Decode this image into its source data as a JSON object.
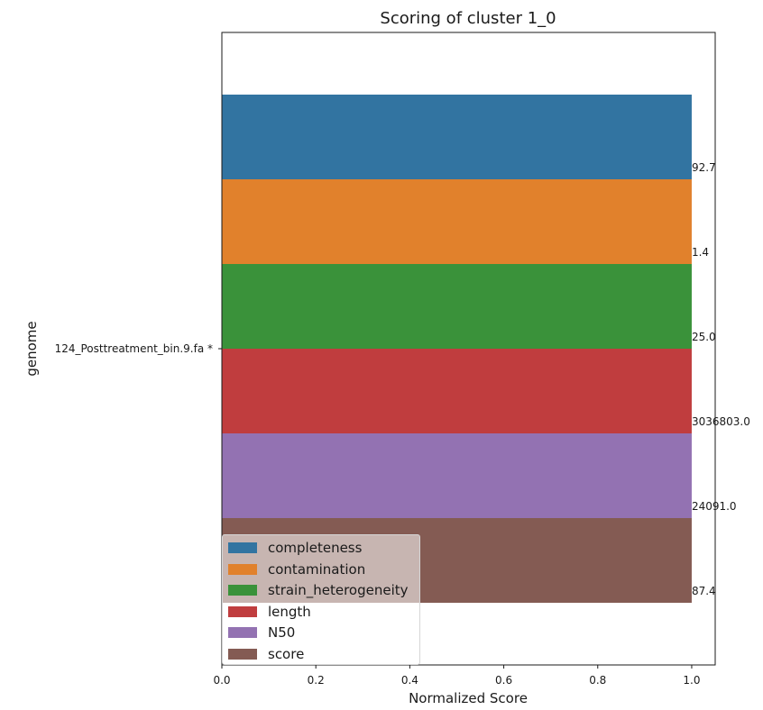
{
  "chart_data": {
    "type": "bar",
    "orientation": "horizontal",
    "title": "Scoring of cluster 1_0",
    "xlabel": "Normalized Score",
    "ylabel": "genome",
    "category": "124_Posttreatment_bin.9.fa *",
    "xlim": [
      0,
      1.05
    ],
    "xticks": [
      "0.0",
      "0.2",
      "0.4",
      "0.6",
      "0.8",
      "1.0"
    ],
    "grid": false,
    "legend_position": "lower-left",
    "series": [
      {
        "name": "completeness",
        "normalized_value": 1.0,
        "label": "92.7",
        "color": "#3274a1"
      },
      {
        "name": "contamination",
        "normalized_value": 1.0,
        "label": "1.4",
        "color": "#e1812c"
      },
      {
        "name": "strain_heterogeneity",
        "normalized_value": 1.0,
        "label": "25.0",
        "color": "#3a923a"
      },
      {
        "name": "length",
        "normalized_value": 1.0,
        "label": "3036803.0",
        "color": "#c03d3e"
      },
      {
        "name": "N50",
        "normalized_value": 1.0,
        "label": "24091.0",
        "color": "#9372b2"
      },
      {
        "name": "score",
        "normalized_value": 1.0,
        "label": "87.4",
        "color": "#845b53"
      }
    ]
  }
}
